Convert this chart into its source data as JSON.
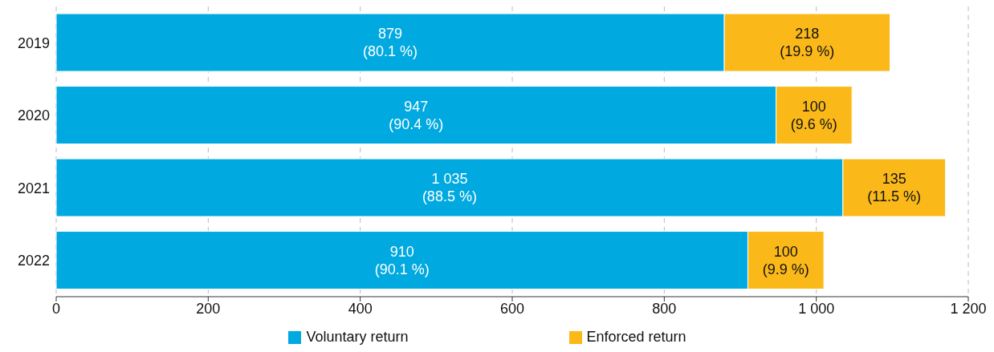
{
  "chart_data": {
    "type": "bar",
    "orientation": "horizontal",
    "stacked": true,
    "categories": [
      "2019",
      "2020",
      "2021",
      "2022"
    ],
    "series": [
      {
        "name": "Voluntary return",
        "color": "#00a9e0",
        "values": [
          879,
          947,
          1035,
          910
        ],
        "value_labels": [
          "879\n(80.1 %)",
          "947\n(90.4 %)",
          "1 035\n(88.5 %)",
          "910\n(90.1 %)"
        ]
      },
      {
        "name": "Enforced return",
        "color": "#fbb919",
        "values": [
          218,
          100,
          135,
          100
        ],
        "value_labels": [
          "218\n(19.9 %)",
          "100\n(9.6 %)",
          "135\n(11.5 %)",
          "100\n(9.9 %)"
        ]
      }
    ],
    "xlim": [
      0,
      1200
    ],
    "xticks": [
      0,
      200,
      400,
      600,
      800,
      {
        "value": 1000,
        "label": "1 000"
      },
      {
        "value": 1200,
        "label": "1 200"
      }
    ],
    "grid": "x",
    "legend": "bottom"
  }
}
